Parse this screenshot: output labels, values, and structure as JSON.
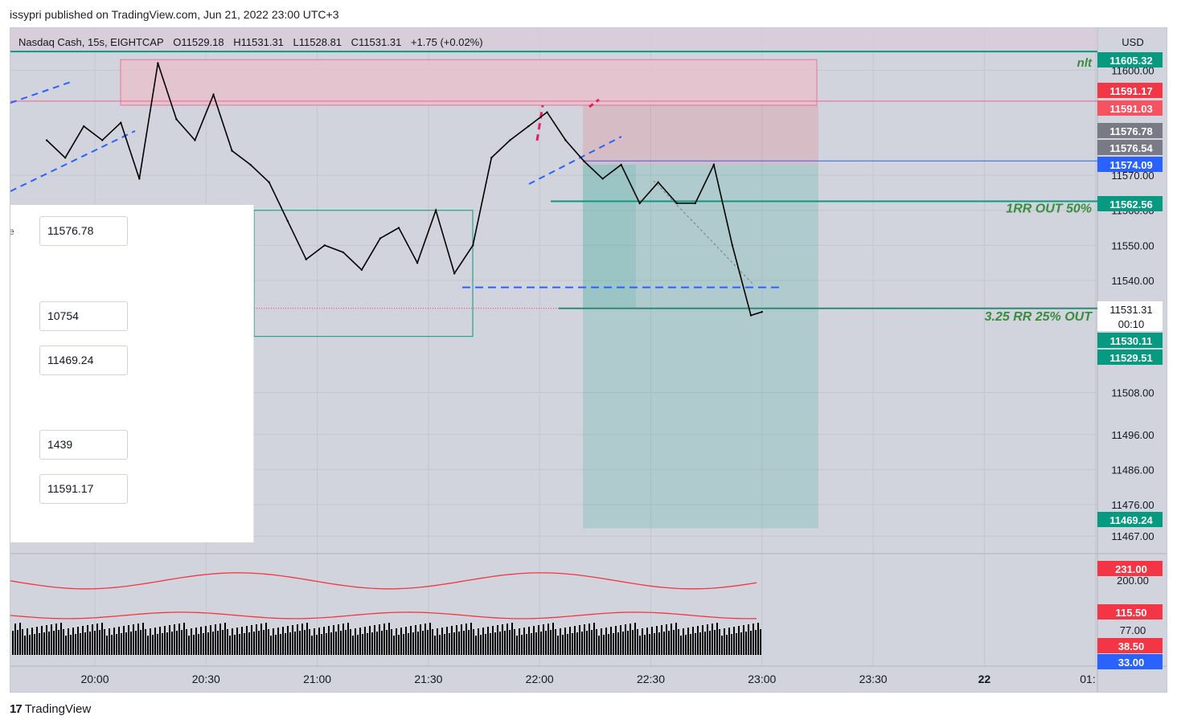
{
  "header": {
    "publisher_line": "issypri published on TradingView.com, Jun 21, 2022 23:00 UTC+3"
  },
  "legend": {
    "symbol": "Nasdaq Cash, 15s, EIGHTCAP",
    "open": "O11529.18",
    "high": "H11531.31",
    "low": "L11528.81",
    "close": "C11531.31",
    "change": "+1.75 (+0.02%)"
  },
  "panel": {
    "edge_label": "e",
    "fields": [
      "11576.78",
      "10754",
      "11469.24",
      "1439",
      "11591.17"
    ]
  },
  "footer": {
    "brand": "TradingView",
    "brand_mark": "17"
  },
  "chart_data": {
    "type": "line",
    "currency": "USD",
    "x_ticks": [
      "20:00",
      "20:30",
      "21:00",
      "21:30",
      "22:00",
      "22:30",
      "23:00",
      "23:30",
      "22",
      "01:"
    ],
    "y_ticks": [
      11600.0,
      11570.0,
      11560.0,
      11550.0,
      11540.0,
      11508.0,
      11496.0,
      11486.0,
      11476.0,
      11467.0
    ],
    "ylim": [
      11462,
      11612
    ],
    "price_series": {
      "x": [
        "19:47",
        "19:52",
        "19:57",
        "20:02",
        "20:07",
        "20:12",
        "20:17",
        "20:22",
        "20:27",
        "20:32",
        "20:37",
        "20:42",
        "20:47",
        "20:52",
        "20:57",
        "21:02",
        "21:07",
        "21:12",
        "21:17",
        "21:22",
        "21:27",
        "21:32",
        "21:37",
        "21:42",
        "21:47",
        "21:52",
        "21:57",
        "22:02",
        "22:07",
        "22:12",
        "22:17",
        "22:22",
        "22:27",
        "22:32",
        "22:37",
        "22:42",
        "22:47",
        "22:52",
        "22:57",
        "23:00"
      ],
      "y": [
        11580,
        11575,
        11584,
        11580,
        11585,
        11569,
        11602,
        11586,
        11580,
        11593,
        11577,
        11573,
        11568,
        11557,
        11546,
        11550,
        11548,
        11543,
        11552,
        11555,
        11545,
        11560,
        11542,
        11550,
        11575,
        11580,
        11584,
        11588,
        11580,
        11574,
        11569,
        11573,
        11562,
        11568,
        11562,
        11562,
        11573,
        11550,
        11530,
        11531
      ]
    },
    "volume_indicator": {
      "ma_upper": 231.0,
      "ma_lower": 115.5,
      "tick_labels": [
        200.0,
        77.0
      ],
      "level_red": 38.5,
      "level_blue": 33.0
    },
    "price_labels": [
      {
        "value": "11605.32",
        "color": "#089981"
      },
      {
        "value": "11591.17",
        "color": "#f23645"
      },
      {
        "value": "11591.03",
        "color": "#f7525f"
      },
      {
        "value": "11576.78",
        "color": "#787b86"
      },
      {
        "value": "11576.54",
        "color": "#787b86"
      },
      {
        "value": "11574.09",
        "color": "#2962ff"
      },
      {
        "value": "11562.56",
        "color": "#089981"
      },
      {
        "value": "11531.31",
        "color": "#ffffff"
      },
      {
        "value": "00:10",
        "color": "#ffffff"
      },
      {
        "value": "11530.11",
        "color": "#089981"
      },
      {
        "value": "11529.51",
        "color": "#089981"
      },
      {
        "value": "11469.24",
        "color": "#089981"
      },
      {
        "value": "231.00",
        "color": "#f23645"
      },
      {
        "value": "115.50",
        "color": "#f23645"
      },
      {
        "value": "38.50",
        "color": "#f23645"
      },
      {
        "value": "33.00",
        "color": "#2962ff"
      }
    ],
    "annotations": [
      {
        "text": "nlt",
        "color": "#388e3c"
      },
      {
        "text": "1RR OUT 50%",
        "color": "#388e3c"
      },
      {
        "text": "3.25 RR 25% OUT",
        "color": "#388e3c"
      }
    ],
    "levels": {
      "line_top": 11605.32,
      "entry_red": 11591.17,
      "position_entry": 11573,
      "stop_top": 11590,
      "blue_line": 11574.09,
      "one_rr": 11562.56,
      "dashed_blue": 11538,
      "three_rr": 11532,
      "target": 11469.24,
      "rect_top": 11603,
      "rect_bottom": 11590
    },
    "colors": {
      "price": "#000000",
      "target_zone": "#089981",
      "stop_zone": "#f23645",
      "ma": "#f23645",
      "volume": "#000000"
    },
    "grid": true
  }
}
